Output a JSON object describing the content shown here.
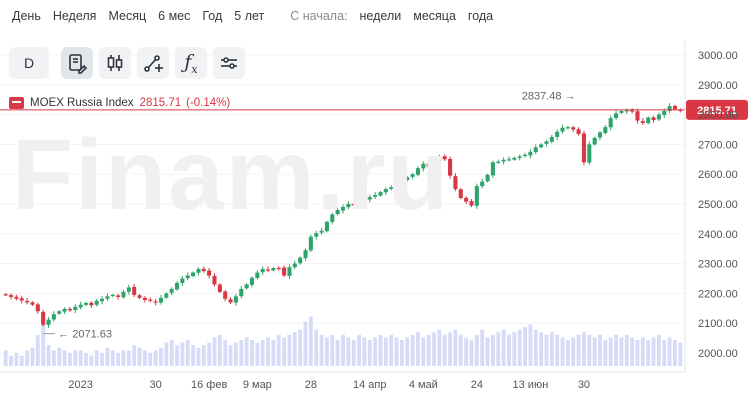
{
  "periods": {
    "day": "День",
    "week": "Неделя",
    "month": "Месяц",
    "six_months": "6 мес",
    "year": "Год",
    "five_years": "5 лет",
    "since_label": "С начала:",
    "since_week": "недели",
    "since_month": "месяца",
    "since_year": "года"
  },
  "toolbar": {
    "interval": "D"
  },
  "watermark": "Finam.ru",
  "instrument": {
    "name": "MOEX Russia Index",
    "price": "2815.71",
    "change": "(-0.14%)"
  },
  "price_badge": "2815.71",
  "colors": {
    "up": "#2ea36b",
    "down": "#d93744",
    "volume": "#d6dcf7",
    "price_line": "#d93744",
    "accent": "#d93744"
  },
  "chart_data": {
    "type": "candlestick",
    "y_axis": {
      "min": 2000,
      "max": 3000,
      "ticks": [
        "3000.00",
        "2900.00",
        "2800.00",
        "2700.00",
        "2600.00",
        "2500.00",
        "2400.00",
        "2300.00",
        "2200.00",
        "2100.00",
        "2000.00"
      ]
    },
    "x_ticks": [
      {
        "label": "2023",
        "index": 14
      },
      {
        "label": "30",
        "index": 28
      },
      {
        "label": "16 фев",
        "index": 38
      },
      {
        "label": "9 мар",
        "index": 47
      },
      {
        "label": "28",
        "index": 57
      },
      {
        "label": "14 апр",
        "index": 68
      },
      {
        "label": "4 май",
        "index": 78
      },
      {
        "label": "24",
        "index": 88
      },
      {
        "label": "13 июн",
        "index": 98
      },
      {
        "label": "30",
        "index": 108
      }
    ],
    "annotations": [
      {
        "label": "2071.63",
        "value": 2071.63,
        "index": 7,
        "kind": "low"
      },
      {
        "label": "2837.48",
        "value": 2837.48,
        "index": 107,
        "kind": "high"
      }
    ],
    "last_price": 2815.71,
    "closes": [
      2195,
      2188,
      2182,
      2176,
      2170,
      2162,
      2140,
      2095,
      2112,
      2130,
      2140,
      2148,
      2143,
      2155,
      2162,
      2168,
      2160,
      2175,
      2182,
      2190,
      2195,
      2188,
      2205,
      2220,
      2195,
      2185,
      2178,
      2175,
      2170,
      2185,
      2200,
      2215,
      2235,
      2250,
      2260,
      2270,
      2282,
      2275,
      2260,
      2230,
      2205,
      2182,
      2170,
      2190,
      2215,
      2230,
      2252,
      2270,
      2282,
      2278,
      2285,
      2285,
      2260,
      2288,
      2300,
      2320,
      2345,
      2390,
      2402,
      2410,
      2440,
      2465,
      2480,
      2490,
      2500,
      2495,
      2508,
      2515,
      2523,
      2530,
      2540,
      2550,
      2556,
      2570,
      2580,
      2590,
      2600,
      2620,
      2635,
      2625,
      2645,
      2660,
      2650,
      2595,
      2550,
      2520,
      2508,
      2495,
      2560,
      2575,
      2598,
      2640,
      2642,
      2648,
      2650,
      2655,
      2660,
      2665,
      2675,
      2690,
      2700,
      2710,
      2725,
      2742,
      2756,
      2758,
      2750,
      2735,
      2640,
      2700,
      2722,
      2740,
      2758,
      2788,
      2804,
      2812,
      2815,
      2810,
      2780,
      2772,
      2790,
      2782,
      2800,
      2812,
      2828,
      2818,
      2815.71
    ],
    "volumes": [
      0.3,
      0.2,
      0.25,
      0.2,
      0.3,
      0.35,
      0.6,
      1.0,
      0.4,
      0.3,
      0.35,
      0.3,
      0.25,
      0.3,
      0.3,
      0.25,
      0.2,
      0.3,
      0.25,
      0.35,
      0.3,
      0.25,
      0.3,
      0.3,
      0.4,
      0.35,
      0.3,
      0.25,
      0.3,
      0.35,
      0.45,
      0.5,
      0.4,
      0.45,
      0.5,
      0.4,
      0.35,
      0.4,
      0.45,
      0.55,
      0.6,
      0.5,
      0.4,
      0.45,
      0.5,
      0.55,
      0.5,
      0.45,
      0.5,
      0.55,
      0.5,
      0.6,
      0.55,
      0.6,
      0.65,
      0.7,
      0.85,
      0.95,
      0.7,
      0.6,
      0.55,
      0.6,
      0.5,
      0.6,
      0.55,
      0.5,
      0.6,
      0.55,
      0.5,
      0.55,
      0.6,
      0.55,
      0.6,
      0.55,
      0.5,
      0.55,
      0.6,
      0.65,
      0.55,
      0.6,
      0.65,
      0.7,
      0.6,
      0.65,
      0.7,
      0.6,
      0.55,
      0.5,
      0.6,
      0.7,
      0.55,
      0.6,
      0.65,
      0.7,
      0.6,
      0.65,
      0.7,
      0.75,
      0.8,
      0.7,
      0.65,
      0.6,
      0.65,
      0.6,
      0.55,
      0.5,
      0.55,
      0.6,
      0.65,
      0.6,
      0.55,
      0.6,
      0.5,
      0.55,
      0.6,
      0.55,
      0.6,
      0.55,
      0.5,
      0.55,
      0.5,
      0.55,
      0.6,
      0.5,
      0.55,
      0.5,
      0.45
    ]
  }
}
